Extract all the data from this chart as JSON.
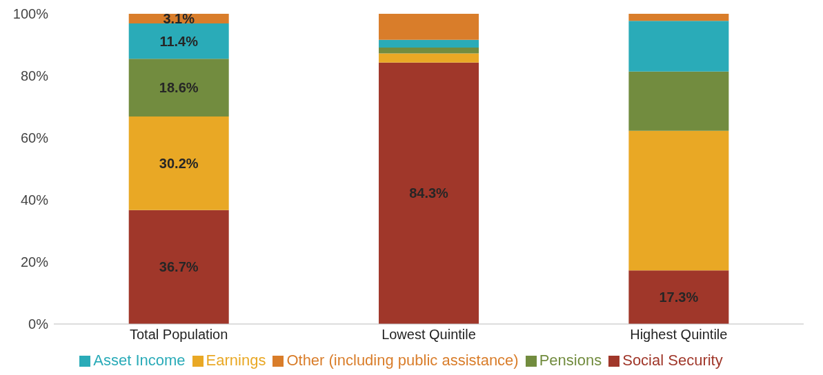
{
  "chart_data": {
    "type": "bar",
    "stacked": true,
    "categories": [
      "Total Population",
      "Lowest Quintile",
      "Highest Quintile"
    ],
    "series": [
      {
        "name": "Social Security",
        "color": "#a0372a",
        "values": [
          36.7,
          84.3,
          17.3
        ],
        "value_labels": [
          "36.7%",
          "84.3%",
          "17.3%"
        ]
      },
      {
        "name": "Earnings",
        "color": "#e9a825",
        "values": [
          30.2,
          2.9,
          45.0
        ],
        "value_labels": [
          "30.2%",
          null,
          null
        ]
      },
      {
        "name": "Pensions",
        "color": "#728c3f",
        "values": [
          18.6,
          1.9,
          19.1
        ],
        "value_labels": [
          "18.6%",
          null,
          null
        ]
      },
      {
        "name": "Asset Income",
        "color": "#2aabb8",
        "values": [
          11.4,
          2.5,
          16.3
        ],
        "value_labels": [
          "11.4%",
          null,
          null
        ]
      },
      {
        "name": "Other (including public assistance)",
        "color": "#d97d2a",
        "values": [
          3.1,
          8.4,
          2.3
        ],
        "value_labels": [
          "3.1%",
          null,
          null
        ]
      }
    ],
    "ylim": [
      0,
      100
    ],
    "yticks": [
      {
        "value": 0,
        "label": "0%"
      },
      {
        "value": 20,
        "label": "20%"
      },
      {
        "value": 40,
        "label": "40%"
      },
      {
        "value": 60,
        "label": "60%"
      },
      {
        "value": 80,
        "label": "80%"
      },
      {
        "value": 100,
        "label": "100%"
      }
    ],
    "grid": false,
    "legend": "bottom"
  }
}
